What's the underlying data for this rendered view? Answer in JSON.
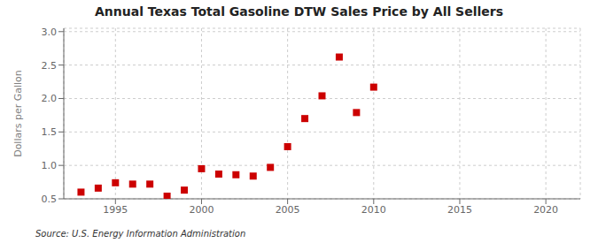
{
  "chart_data": {
    "type": "scatter",
    "title": "Annual Texas Total Gasoline DTW Sales Price by All Sellers",
    "ylabel": "Dollars per Gallon",
    "annotations": [
      "Source: U.S. Energy Information Administration"
    ],
    "x": [
      1993,
      1994,
      1995,
      1996,
      1997,
      1998,
      1999,
      2000,
      2001,
      2002,
      2003,
      2004,
      2005,
      2006,
      2007,
      2008,
      2009,
      2010
    ],
    "values": [
      0.6,
      0.66,
      0.74,
      0.72,
      0.72,
      0.54,
      0.63,
      0.95,
      0.87,
      0.86,
      0.84,
      0.97,
      1.28,
      1.7,
      2.04,
      2.62,
      1.79,
      2.17
    ],
    "color": "#cc0000",
    "marker": "square",
    "xlim": [
      1992,
      2022
    ],
    "ylim": [
      0.5,
      3.05
    ],
    "xticks": [
      1995,
      2000,
      2005,
      2010,
      2015,
      2020
    ],
    "yticks": [
      0.5,
      {
        "value": 1,
        "label": "1.0"
      },
      1.5,
      {
        "value": 2,
        "label": "2.0"
      },
      2.5,
      {
        "value": 3,
        "label": "3.0"
      }
    ],
    "grid": true
  }
}
